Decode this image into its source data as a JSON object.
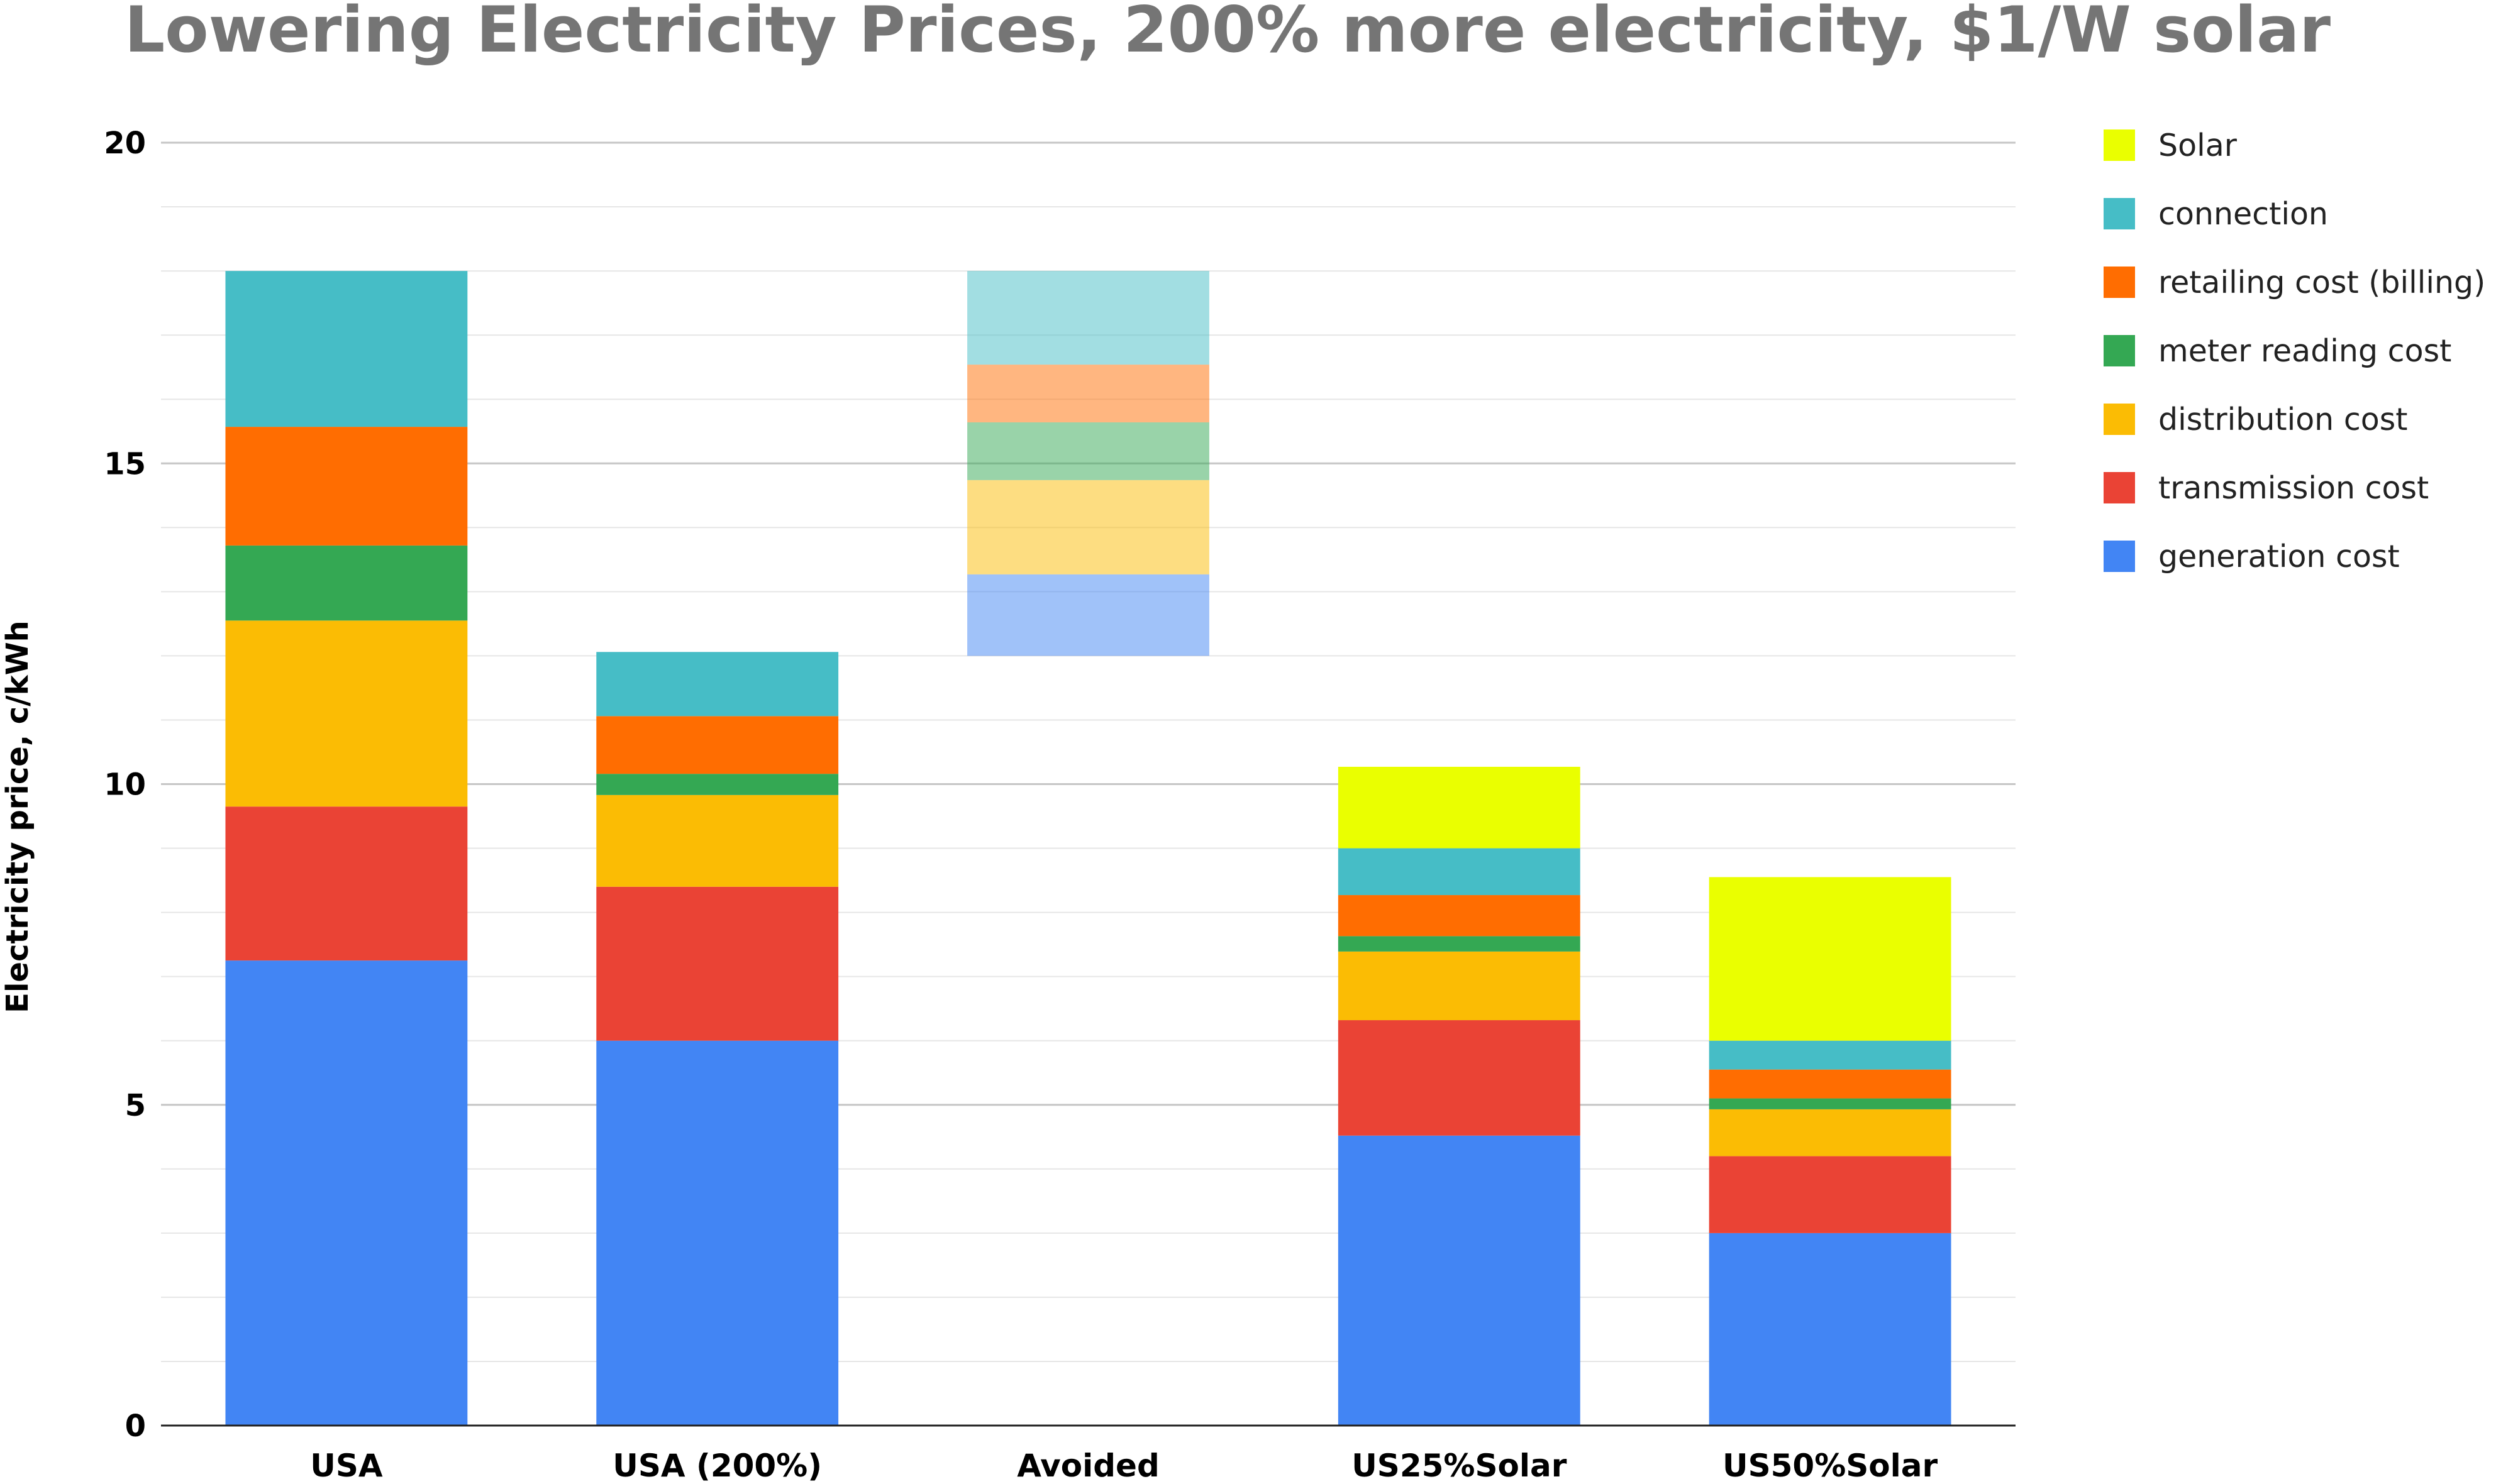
{
  "chart_data": {
    "type": "bar",
    "stacked": true,
    "title": "Lowering Electricity Prices, 200% more electricity, $1/W solar",
    "xlabel": "",
    "ylabel": "Electricity price, c/kWh",
    "ylim": [
      0,
      20
    ],
    "yticks": [
      0,
      5,
      10,
      15,
      20
    ],
    "minor_step": 1,
    "grid": true,
    "legend_position": "right",
    "categories": [
      "USA",
      "USA (200%)",
      "Avoided",
      "US25%Solar",
      "US50%Solar"
    ],
    "baselines": [
      0,
      0,
      12.0,
      0,
      0
    ],
    "faded_categories": [
      "Avoided"
    ],
    "series": [
      {
        "name": "generation cost",
        "color": "#4285f4",
        "values": [
          7.25,
          6.0,
          1.27,
          4.52,
          3.0
        ]
      },
      {
        "name": "transmission cost",
        "color": "#ea4335",
        "values": [
          2.4,
          2.4,
          0,
          1.8,
          1.2
        ]
      },
      {
        "name": "distribution cost",
        "color": "#fbbc04",
        "values": [
          2.9,
          1.43,
          1.47,
          1.07,
          0.73
        ]
      },
      {
        "name": "meter reading cost",
        "color": "#34a853",
        "values": [
          1.17,
          0.33,
          0.9,
          0.24,
          0.17
        ]
      },
      {
        "name": "retailing cost (billing)",
        "color": "#ff6d01",
        "values": [
          1.85,
          0.9,
          0.9,
          0.64,
          0.45
        ]
      },
      {
        "name": "connection",
        "color": "#46bdc6",
        "values": [
          2.43,
          1.0,
          1.46,
          0.73,
          0.45
        ]
      },
      {
        "name": "Solar",
        "color": "#eaff00",
        "values": [
          0,
          0,
          0,
          1.27,
          2.55
        ]
      }
    ],
    "legend_order": [
      "Solar",
      "connection",
      "retailing cost (billing)",
      "meter reading cost",
      "distribution cost",
      "transmission cost",
      "generation cost"
    ]
  }
}
